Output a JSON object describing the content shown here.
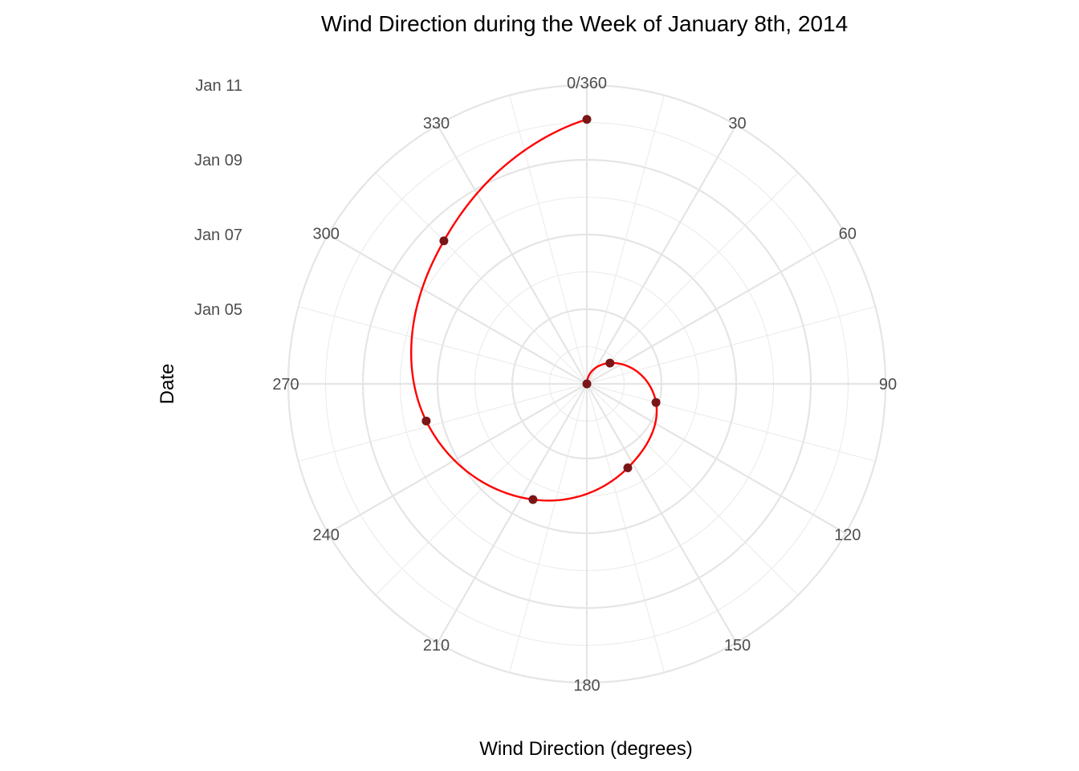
{
  "chart_data": {
    "type": "line",
    "coordinate_system": "polar",
    "title": "Wind Direction during the Week of January 8th, 2014",
    "xlabel": "Wind Direction (degrees)",
    "ylabel": "Date",
    "angle_axis": {
      "range": [
        0,
        360
      ],
      "ticks": [
        0,
        30,
        60,
        90,
        120,
        150,
        180,
        210,
        240,
        270,
        300,
        330
      ],
      "tick_labels": [
        "0/360",
        "30",
        "60",
        "90",
        "120",
        "150",
        "180",
        "210",
        "240",
        "270",
        "300",
        "330"
      ],
      "minor_ticks": [
        15,
        45,
        75,
        105,
        135,
        165,
        195,
        225,
        255,
        285,
        315,
        345
      ]
    },
    "radial_axis": {
      "range": [
        "2014-01-03",
        "2014-01-11"
      ],
      "ticks": [
        "2014-01-05",
        "2014-01-07",
        "2014-01-09",
        "2014-01-11"
      ],
      "tick_labels": [
        "Jan 05",
        "Jan 07",
        "Jan 09",
        "Jan 11"
      ],
      "minor_ticks": [
        "2014-01-04",
        "2014-01-06",
        "2014-01-08",
        "2014-01-10"
      ]
    },
    "series": [
      {
        "x": [
          0,
          48,
          105,
          154,
          205,
          257,
          315,
          360
        ],
        "y": [
          "2014-01-03",
          "2014-01-03 20:00",
          "2014-01-04 22:00",
          "2014-01-05 12:00",
          "2014-01-06 10:00",
          "2014-01-07 10:00",
          "2014-01-08 10:00",
          "2014-01-10 02:00"
        ],
        "point_color": "#7a1618",
        "line_color": "#ff0000"
      }
    ],
    "grid": true,
    "legend": "none"
  }
}
